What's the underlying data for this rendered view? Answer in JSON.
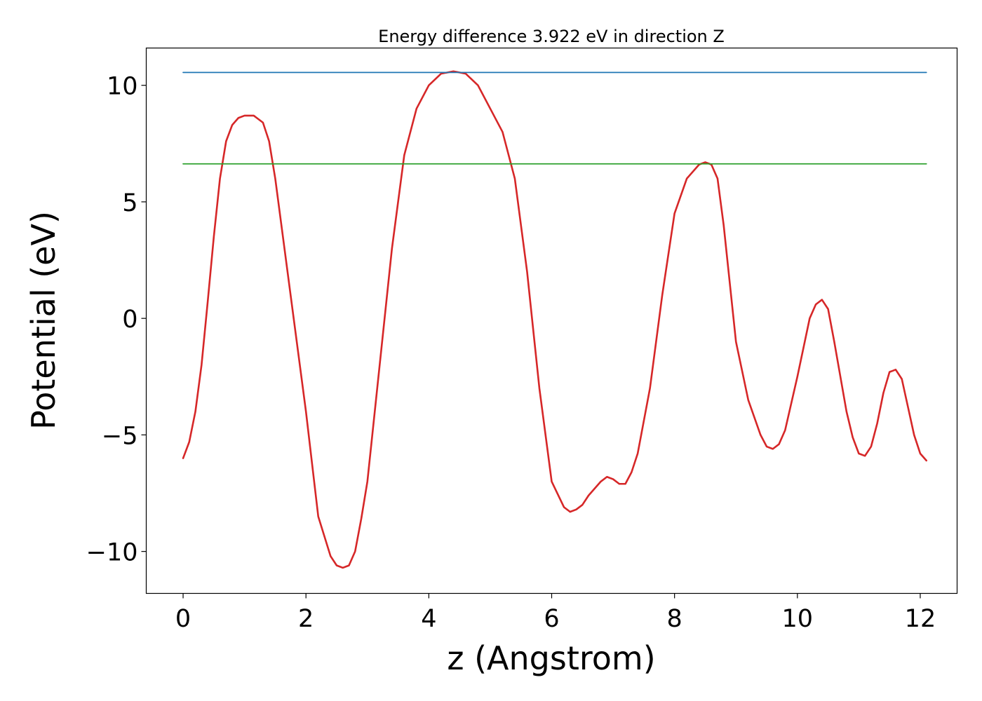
{
  "chart_data": {
    "type": "line",
    "title": "Energy difference 3.922 eV in direction Z",
    "xlabel": "z (Angstrom)",
    "ylabel": "Potential (eV)",
    "xlim": [
      -0.6,
      12.6
    ],
    "ylim": [
      -11.8,
      11.6
    ],
    "xticks": [
      0,
      2,
      4,
      6,
      8,
      10,
      12
    ],
    "xtick_labels": [
      "0",
      "2",
      "4",
      "6",
      "8",
      "10",
      "12"
    ],
    "yticks": [
      -10,
      -5,
      0,
      5,
      10
    ],
    "ytick_labels": [
      "−10",
      "−5",
      "0",
      "5",
      "10"
    ],
    "grid": false,
    "series": [
      {
        "color": "#d62728",
        "x": [
          0,
          0.1,
          0.2,
          0.3,
          0.4,
          0.5,
          0.6,
          0.7,
          0.8,
          0.9,
          1.0,
          1.05,
          1.1,
          1.15,
          1.2,
          1.3,
          1.4,
          1.5,
          1.6,
          1.7,
          1.8,
          2.0,
          2.2,
          2.4,
          2.5,
          2.6,
          2.7,
          2.8,
          2.9,
          3.0,
          3.2,
          3.4,
          3.6,
          3.8,
          4.0,
          4.2,
          4.4,
          4.5,
          4.6,
          4.8,
          5.0,
          5.2,
          5.4,
          5.6,
          5.8,
          6.0,
          6.2,
          6.3,
          6.4,
          6.5,
          6.6,
          6.8,
          6.9,
          7.0,
          7.1,
          7.2,
          7.3,
          7.4,
          7.6,
          7.8,
          8.0,
          8.2,
          8.4,
          8.5,
          8.6,
          8.7,
          8.8,
          8.9,
          9.0,
          9.2,
          9.4,
          9.5,
          9.6,
          9.7,
          9.8,
          10.0,
          10.2,
          10.3,
          10.4,
          10.5,
          10.6,
          10.8,
          10.9,
          11.0,
          11.1,
          11.2,
          11.3,
          11.4,
          11.5,
          11.6,
          11.7,
          11.8,
          11.9,
          12.0,
          12.1
        ],
        "y": [
          -6.0,
          -5.3,
          -4.0,
          -2.0,
          0.7,
          3.5,
          6.0,
          7.6,
          8.3,
          8.6,
          8.7,
          8.7,
          8.7,
          8.7,
          8.6,
          8.4,
          7.6,
          6.0,
          4.0,
          2.0,
          0.0,
          -4.0,
          -8.5,
          -10.2,
          -10.6,
          -10.7,
          -10.6,
          -10.0,
          -8.6,
          -7.0,
          -2.0,
          3.0,
          7.0,
          9.0,
          10.0,
          10.5,
          10.6,
          10.55,
          10.5,
          10.0,
          9.0,
          8.0,
          6.0,
          2.0,
          -3.0,
          -7.0,
          -8.1,
          -8.3,
          -8.2,
          -8.0,
          -7.6,
          -7.0,
          -6.8,
          -6.9,
          -7.1,
          -7.1,
          -6.6,
          -5.8,
          -3.0,
          1.0,
          4.5,
          6.0,
          6.6,
          6.7,
          6.6,
          6.0,
          4.0,
          1.5,
          -1.0,
          -3.5,
          -5.0,
          -5.5,
          -5.6,
          -5.4,
          -4.8,
          -2.5,
          0.0,
          0.6,
          0.8,
          0.4,
          -1.0,
          -4.0,
          -5.1,
          -5.8,
          -5.9,
          -5.5,
          -4.5,
          -3.2,
          -2.3,
          -2.2,
          -2.6,
          -3.8,
          -5.0,
          -5.8,
          -6.1
        ]
      },
      {
        "color": "#1f77b4",
        "x": [
          0,
          12.1
        ],
        "y": [
          10.55,
          10.55
        ]
      },
      {
        "color": "#2ca02c",
        "x": [
          0,
          12.1
        ],
        "y": [
          6.63,
          6.63
        ]
      }
    ]
  }
}
